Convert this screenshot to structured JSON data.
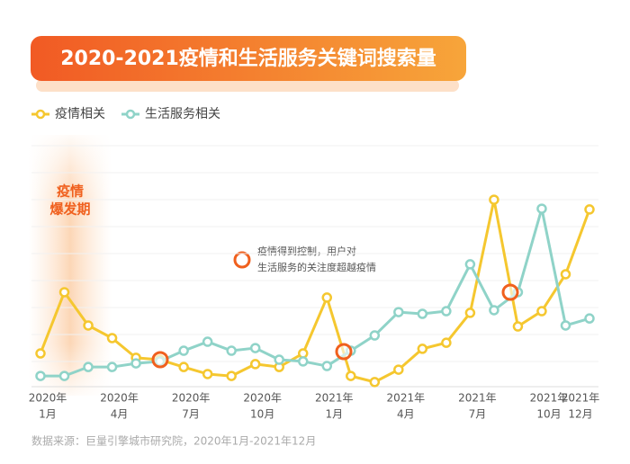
{
  "chart_data": {
    "type": "line",
    "title": "2020-2021疫情和生活服务关键词搜索量",
    "categories": [
      [
        "2020年",
        "1月"
      ],
      null,
      null,
      [
        "2020年",
        "4月"
      ],
      null,
      null,
      [
        "2020年",
        "7月"
      ],
      null,
      null,
      [
        "2020年",
        "10月"
      ],
      null,
      null,
      [
        "2021年",
        "1月"
      ],
      null,
      null,
      [
        "2021年",
        "4月"
      ],
      null,
      null,
      [
        "2021年",
        "7月"
      ],
      null,
      null,
      [
        "2021年",
        "10月"
      ],
      null,
      [
        "2021年",
        "12月"
      ]
    ],
    "series": [
      {
        "name": "疫情相关",
        "color": "#f5c72f",
        "values": [
          13.7,
          38.9,
          25.2,
          20,
          11.9,
          11.1,
          8.1,
          5.2,
          4.4,
          9.3,
          8.1,
          13.7,
          36.7,
          4.4,
          1.9,
          7,
          15.6,
          18.1,
          30.4,
          77,
          24.8,
          31.1,
          46.3,
          73
        ]
      },
      {
        "name": "生活服务相关",
        "color": "#8fd3c8",
        "values": [
          4.4,
          4.4,
          8.1,
          8.1,
          9.6,
          10.4,
          14.8,
          18.5,
          14.8,
          15.9,
          11.1,
          10.4,
          8.5,
          14.8,
          21.1,
          30.7,
          30,
          31.1,
          50.4,
          31.5,
          38.9,
          73.3,
          25.2,
          28.1
        ]
      }
    ],
    "ylim": [
      0,
      100
    ],
    "grid": true,
    "annotations": [
      [
        "疫情",
        "爆发期"
      ],
      [
        "疫情得到控制，用户对",
        "生活服务的关注度超越疫情"
      ]
    ],
    "source": "数据来源：巨量引擎城市研究院，2020年1月-2021年12月"
  }
}
